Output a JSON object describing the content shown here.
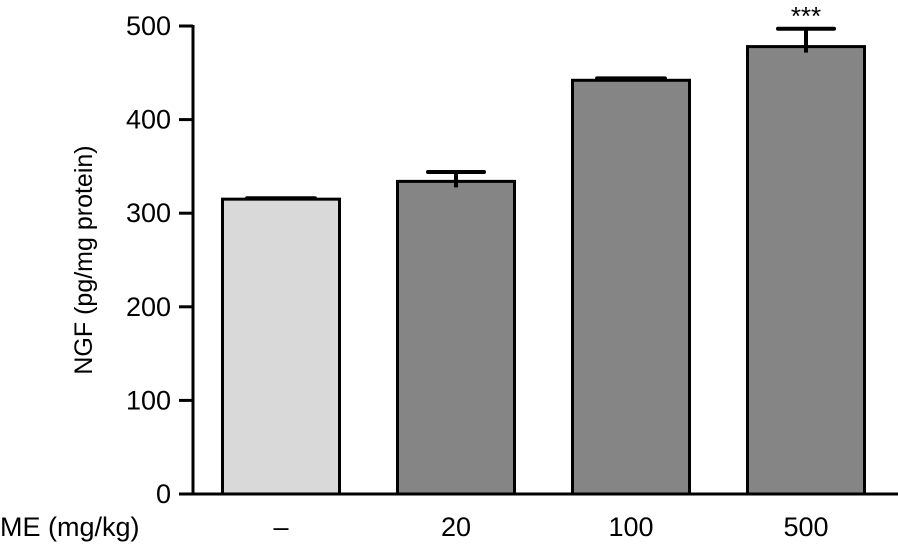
{
  "chart_data": {
    "type": "bar",
    "xlabel": "ME (mg/kg)",
    "ylabel": "NGF (pg/mg protein)",
    "ylim": [
      0,
      500
    ],
    "yticks": [
      0,
      100,
      200,
      300,
      400,
      500
    ],
    "categories": [
      "–",
      "20",
      "100",
      "500"
    ],
    "series": [
      {
        "values": [
          315,
          334,
          442,
          478
        ],
        "errors": [
          1,
          10,
          2,
          19
        ],
        "colors": [
          "#d9d9d9",
          "#858585",
          "#858585",
          "#858585"
        ],
        "significance": [
          "",
          "",
          "",
          "***"
        ]
      }
    ]
  }
}
